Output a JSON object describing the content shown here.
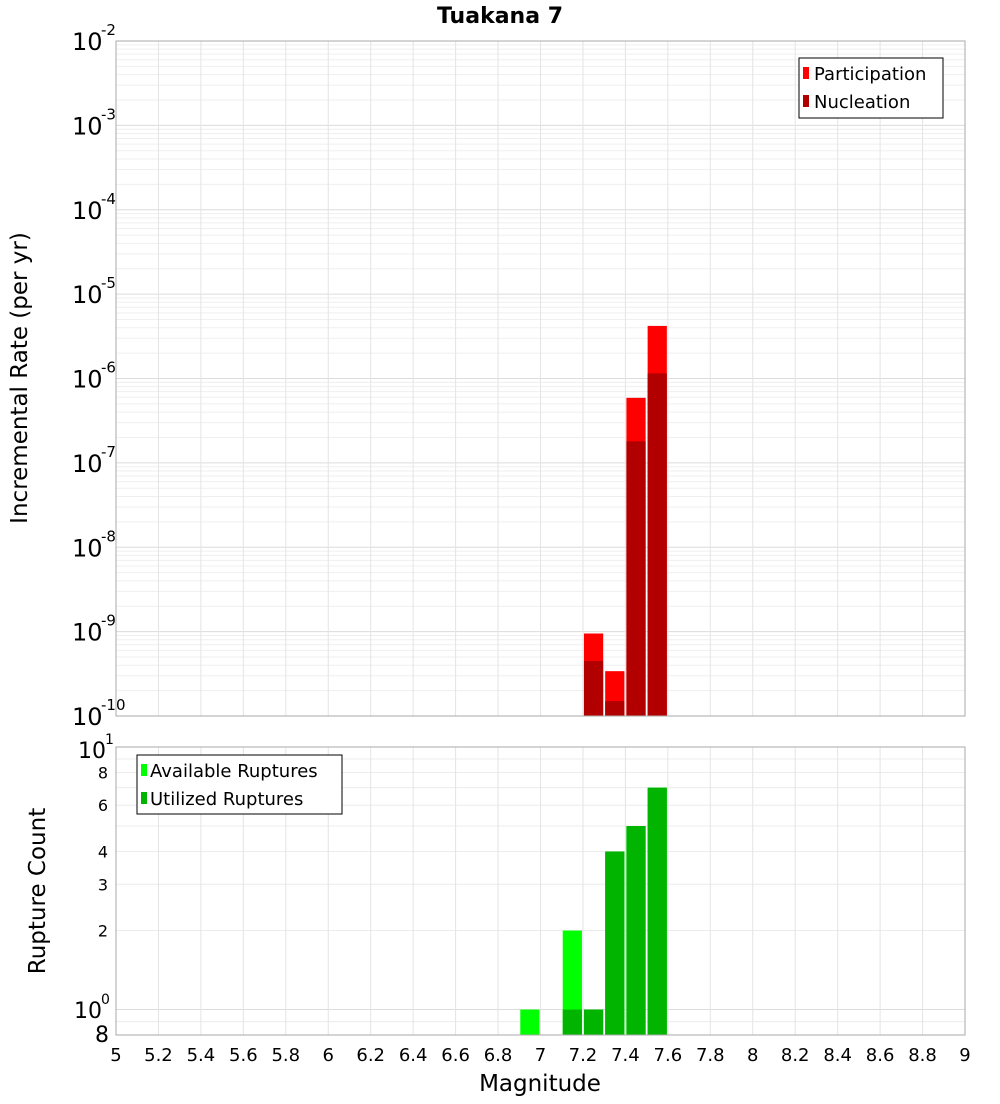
{
  "title": "Tuakana 7",
  "chart_data": [
    {
      "type": "bar",
      "panel": "top",
      "ylabel": "Incremental Rate (per yr)",
      "yscale": "log",
      "ylim": [
        1e-10,
        0.01
      ],
      "xlim": [
        5,
        9
      ],
      "bin_width": 0.1,
      "grid": true,
      "legend_position": "top-right",
      "y_tick_exponents": [
        "-2",
        "-3",
        "-4",
        "-5",
        "-6",
        "-7",
        "-8",
        "-9",
        "-10"
      ],
      "series": [
        {
          "name": "Participation",
          "color": "#ff0000",
          "x": [
            7.25,
            7.35,
            7.45,
            7.55
          ],
          "values": [
            9.5e-10,
            3.4e-10,
            5.9e-07,
            4.2e-06
          ]
        },
        {
          "name": "Nucleation",
          "color": "#b20000",
          "x": [
            7.25,
            7.35,
            7.45,
            7.55
          ],
          "values": [
            4.5e-10,
            1.5e-10,
            1.8e-07,
            1.15e-06
          ]
        }
      ]
    },
    {
      "type": "bar",
      "panel": "bottom",
      "ylabel": "Rupture Count",
      "xlabel": "Magnitude",
      "yscale": "log",
      "ylim": [
        0.8,
        10
      ],
      "xlim": [
        5,
        9
      ],
      "bin_width": 0.1,
      "grid": true,
      "legend_position": "top-left",
      "y_ticks": [
        8,
        6,
        4,
        3,
        2
      ],
      "y_tick_edges": {
        "top_base": "10",
        "top_exp": "1",
        "mid_base": "10",
        "mid_exp": "0",
        "bottom": "8"
      },
      "x_ticks": [
        "5",
        "5.2",
        "5.4",
        "5.6",
        "5.8",
        "6",
        "6.2",
        "6.4",
        "6.6",
        "6.8",
        "7",
        "7.2",
        "7.4",
        "7.6",
        "7.8",
        "8",
        "8.2",
        "8.4",
        "8.6",
        "8.8",
        "9"
      ],
      "series": [
        {
          "name": "Available Ruptures",
          "color": "#00ff00",
          "x": [
            6.95,
            7.15,
            7.25,
            7.35,
            7.45,
            7.55
          ],
          "values": [
            1,
            2,
            1,
            4,
            5,
            7
          ]
        },
        {
          "name": "Utilized Ruptures",
          "color": "#00b400",
          "x": [
            7.15,
            7.25,
            7.35,
            7.45,
            7.55
          ],
          "values": [
            1,
            1,
            4,
            5,
            7
          ]
        }
      ]
    }
  ]
}
